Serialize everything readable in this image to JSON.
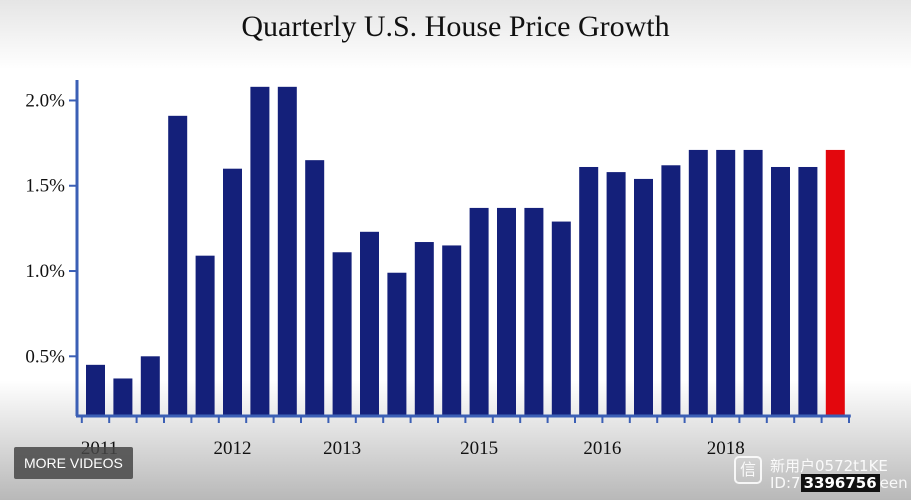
{
  "chart_data": {
    "type": "bar",
    "title": "Quarterly U.S. House Price Growth",
    "xlabel": "",
    "ylabel": "",
    "unit": "%",
    "ylim": [
      0.15,
      2.12
    ],
    "yticks": [
      {
        "value": 0.5,
        "label": "0.5%"
      },
      {
        "value": 1.0,
        "label": "1.0%"
      },
      {
        "value": 1.5,
        "label": "1.5%"
      },
      {
        "value": 2.0,
        "label": "2.0%"
      }
    ],
    "xtick_labels": [
      {
        "label": "2011",
        "at_bar": 0
      },
      {
        "label": "2012",
        "at_bar": 5
      },
      {
        "label": "2013",
        "at_bar": 9
      },
      {
        "label": "2015",
        "at_bar": 14
      },
      {
        "label": "2016",
        "at_bar": 18.5
      },
      {
        "label": "2018",
        "at_bar": 23
      }
    ],
    "values": [
      0.45,
      0.37,
      0.5,
      1.91,
      1.09,
      1.6,
      2.08,
      2.08,
      1.65,
      1.11,
      1.23,
      0.99,
      1.17,
      1.15,
      1.37,
      1.37,
      1.37,
      1.29,
      1.61,
      1.58,
      1.54,
      1.62,
      1.71,
      1.71,
      1.71,
      1.61,
      1.61,
      1.71
    ],
    "bar_colors": [
      "#14207a",
      "#14207a",
      "#14207a",
      "#14207a",
      "#14207a",
      "#14207a",
      "#14207a",
      "#14207a",
      "#14207a",
      "#14207a",
      "#14207a",
      "#14207a",
      "#14207a",
      "#14207a",
      "#14207a",
      "#14207a",
      "#14207a",
      "#14207a",
      "#14207a",
      "#14207a",
      "#14207a",
      "#14207a",
      "#14207a",
      "#14207a",
      "#14207a",
      "#14207a",
      "#14207a",
      "#e3070d"
    ],
    "axis_color": "#3b5fb5"
  },
  "overlay": {
    "more_videos": "MORE VIDEOS",
    "watermark_icon": "信",
    "watermark_line1": "新用户0572t1KE",
    "watermark_id_prefix": "ID:7",
    "watermark_id": "3396756",
    "watermark_suffix": "een"
  }
}
